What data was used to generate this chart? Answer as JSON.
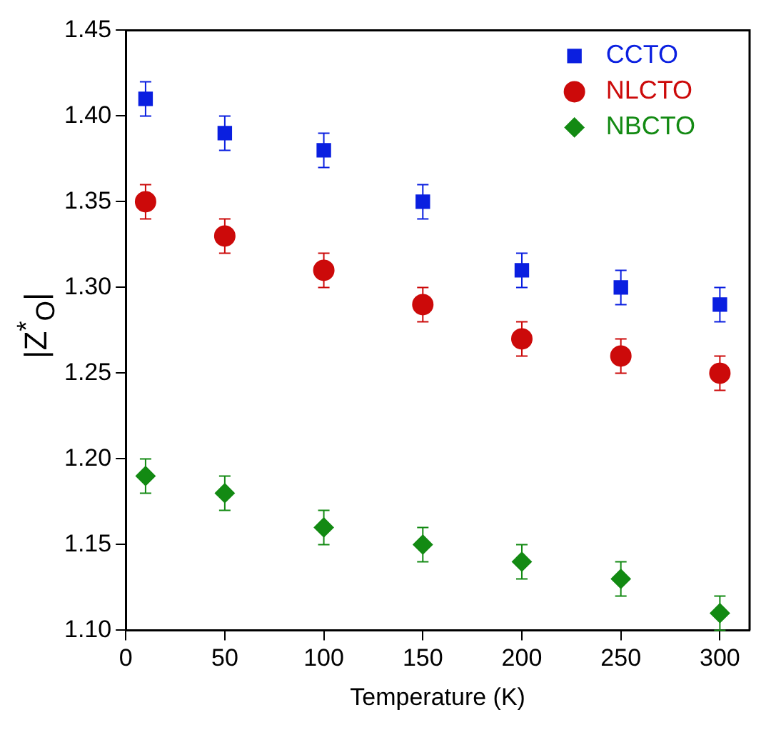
{
  "chart_data": {
    "type": "scatter",
    "xlabel": "Temperature (K)",
    "ylabel": "|Z$^{*}$$_{O}$|",
    "xlim": [
      0,
      315
    ],
    "xticks": [
      0,
      50,
      100,
      150,
      200,
      250,
      300
    ],
    "ylim": [
      1.1,
      1.45
    ],
    "yticks": [
      {
        "value": 1.1,
        "label": "1.10"
      },
      {
        "value": 1.15,
        "label": "1.15"
      },
      {
        "value": 1.2,
        "label": "1.20"
      },
      {
        "value": 1.25,
        "label": "1.25"
      },
      {
        "value": 1.3,
        "label": "1.30"
      },
      {
        "value": 1.35,
        "label": "1.35"
      },
      {
        "value": 1.4,
        "label": "1.40"
      },
      {
        "value": 1.45,
        "label": "1.45"
      }
    ],
    "grid": false,
    "legend": "top right",
    "series": [
      {
        "name": "CCTO",
        "color": "#0a1fe0",
        "marker": "square",
        "x": [
          10,
          50,
          100,
          150,
          200,
          250,
          300
        ],
        "values": [
          1.41,
          1.39,
          1.38,
          1.35,
          1.31,
          1.3,
          1.29
        ],
        "errors": [
          0.01,
          0.01,
          0.01,
          0.01,
          0.01,
          0.01,
          0.01
        ]
      },
      {
        "name": "NLCTO",
        "color": "#cc0a0a",
        "marker": "circle",
        "x": [
          10,
          50,
          100,
          150,
          200,
          250,
          300
        ],
        "values": [
          1.35,
          1.33,
          1.31,
          1.29,
          1.27,
          1.26,
          1.25
        ],
        "errors": [
          0.01,
          0.01,
          0.01,
          0.01,
          0.01,
          0.01,
          0.01
        ]
      },
      {
        "name": "NBCTO",
        "color": "#138a13",
        "marker": "diamond",
        "x": [
          10,
          50,
          100,
          150,
          200,
          250,
          300
        ],
        "values": [
          1.19,
          1.18,
          1.16,
          1.15,
          1.14,
          1.13,
          1.11
        ],
        "errors": [
          0.01,
          0.01,
          0.01,
          0.01,
          0.01,
          0.01,
          0.01
        ]
      }
    ]
  }
}
